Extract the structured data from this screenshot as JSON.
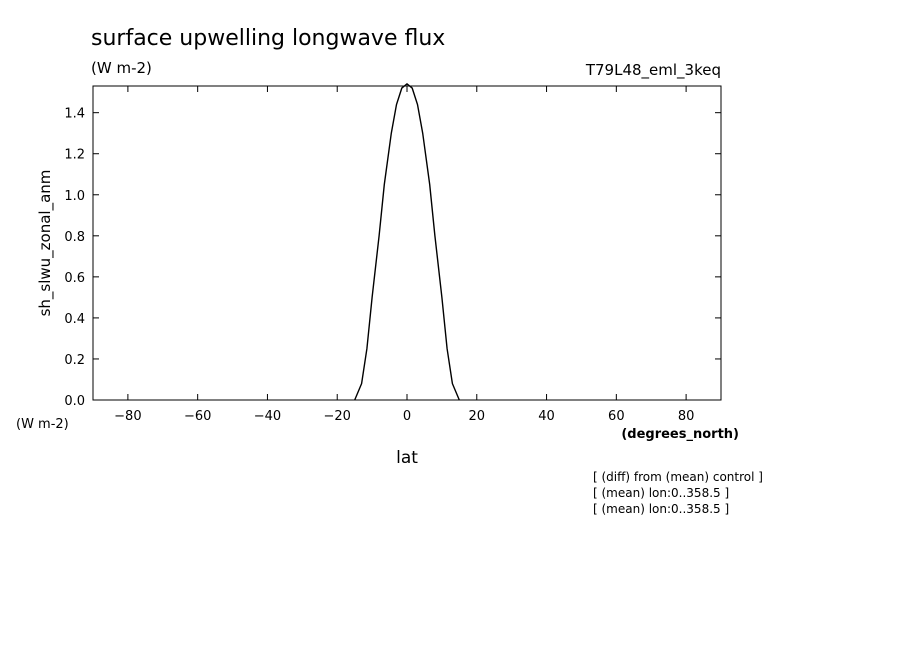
{
  "chart_data": {
    "type": "line",
    "title": "surface upwelling longwave flux",
    "units": "(W m-2)",
    "experiment": "T79L48_eml_3keq",
    "ylabel": "sh_slwu_zonal_anm",
    "yunits": "(W m-2)",
    "xlabel": "lat",
    "xunits": "(degrees_north)",
    "xlim": [
      -90,
      90
    ],
    "ylim": [
      0,
      1.53
    ],
    "xticks": [
      -80,
      -60,
      -40,
      -20,
      0,
      20,
      40,
      60,
      80
    ],
    "xtick_labels": [
      "−80",
      "−60",
      "−40",
      "−20",
      "0",
      "20",
      "40",
      "60",
      "80"
    ],
    "yticks": [
      0,
      0.2,
      0.4,
      0.6,
      0.8,
      1.0,
      1.2,
      1.4
    ],
    "ytick_labels": [
      "0.0",
      "0.2",
      "0.4",
      "0.6",
      "0.8",
      "1.0",
      "1.2",
      "1.4"
    ],
    "grid": false,
    "series": [
      {
        "x": [
          -15,
          -13,
          -11.5,
          -10,
          -8,
          -6.5,
          -4.5,
          -3,
          -1.5,
          0,
          1.5,
          3,
          4.5,
          6.5,
          8,
          10,
          11.5,
          13,
          15
        ],
        "y": [
          0,
          0.08,
          0.25,
          0.5,
          0.8,
          1.05,
          1.3,
          1.44,
          1.52,
          1.54,
          1.52,
          1.44,
          1.3,
          1.05,
          0.8,
          0.5,
          0.25,
          0.08,
          0
        ]
      }
    ],
    "notes": [
      "[ (diff) from (mean) control ]",
      "[ (mean) lon:0..358.5 ]",
      "[ (mean) lon:0..358.5 ]"
    ]
  }
}
